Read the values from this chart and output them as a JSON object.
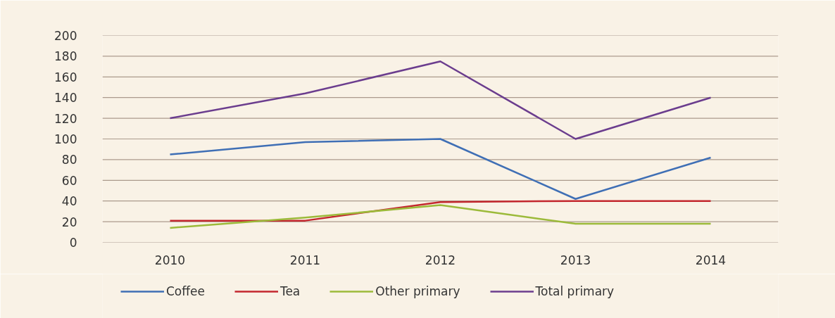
{
  "chart_data": {
    "type": "line",
    "categories": [
      "2010",
      "2011",
      "2012",
      "2013",
      "2014"
    ],
    "ylim": [
      0,
      200
    ],
    "yticks": [
      0,
      20,
      40,
      60,
      80,
      100,
      120,
      140,
      160,
      180,
      200
    ],
    "grid": "y",
    "legend": "bottom",
    "series": [
      {
        "name": "Coffee",
        "color": "#3f6fb5",
        "values": [
          85,
          97,
          100,
          42,
          82
        ]
      },
      {
        "name": "Tea",
        "color": "#c3272e",
        "values": [
          21,
          21,
          39,
          40,
          40
        ]
      },
      {
        "name": "Other primary",
        "color": "#9cba3a",
        "values": [
          14,
          24,
          36,
          18,
          18
        ]
      },
      {
        "name": "Total primary",
        "color": "#6b3d8e",
        "values": [
          120,
          144,
          175,
          100,
          140
        ]
      }
    ]
  }
}
